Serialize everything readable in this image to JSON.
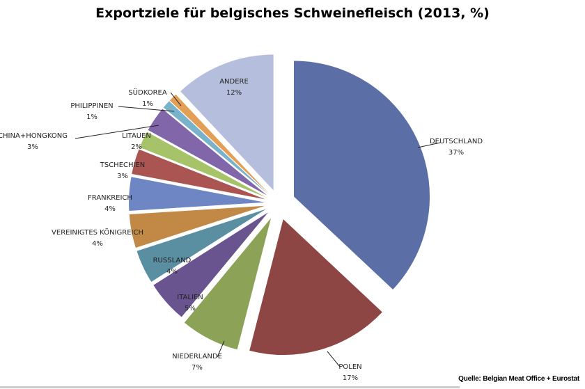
{
  "chart_data": {
    "type": "pie",
    "title": "Exportziele für belgisches Schweinefleisch (2013, %)",
    "unit": "%",
    "start": "12 o'clock, clockwise",
    "slices": [
      {
        "label": "DEUTSCHLAND",
        "value": 37,
        "display": "37%",
        "color": "#5b6fa6"
      },
      {
        "label": "POLEN",
        "value": 17,
        "display": "17%",
        "color": "#8e4645"
      },
      {
        "label": "NIEDERLANDE",
        "value": 7,
        "display": "7%",
        "color": "#8ba257"
      },
      {
        "label": "ITALIEN",
        "value": 5,
        "display": "5%",
        "color": "#6a5490"
      },
      {
        "label": "RUSSLAND",
        "value": 4,
        "display": "4%",
        "color": "#5a8ea1"
      },
      {
        "label": "VEREINIGTES KÖNIGREICH",
        "value": 4,
        "display": "4%",
        "color": "#c28845"
      },
      {
        "label": "FRANKREICH",
        "value": 4,
        "display": "4%",
        "color": "#6e86c4"
      },
      {
        "label": "TSCHECHIEN",
        "value": 3,
        "display": "3%",
        "color": "#ab5552"
      },
      {
        "label": "LITAUEN",
        "value": 2,
        "display": "2%",
        "color": "#a6c36a"
      },
      {
        "label": "CHINA+HONGKONG",
        "value": 3,
        "display": "3%",
        "color": "#8166aa"
      },
      {
        "label": "PHILIPPINEN",
        "value": 1,
        "display": "1%",
        "color": "#78b2cb"
      },
      {
        "label": "SÜDKOREA",
        "value": 1,
        "display": "1%",
        "color": "#e39f55"
      },
      {
        "label": "ANDERE",
        "value": 12,
        "display": "12%",
        "color": "#b5bedc"
      }
    ],
    "legend": "none (data labels)"
  },
  "source": "Quelle: Belgian Meat Office  + Eurostat"
}
